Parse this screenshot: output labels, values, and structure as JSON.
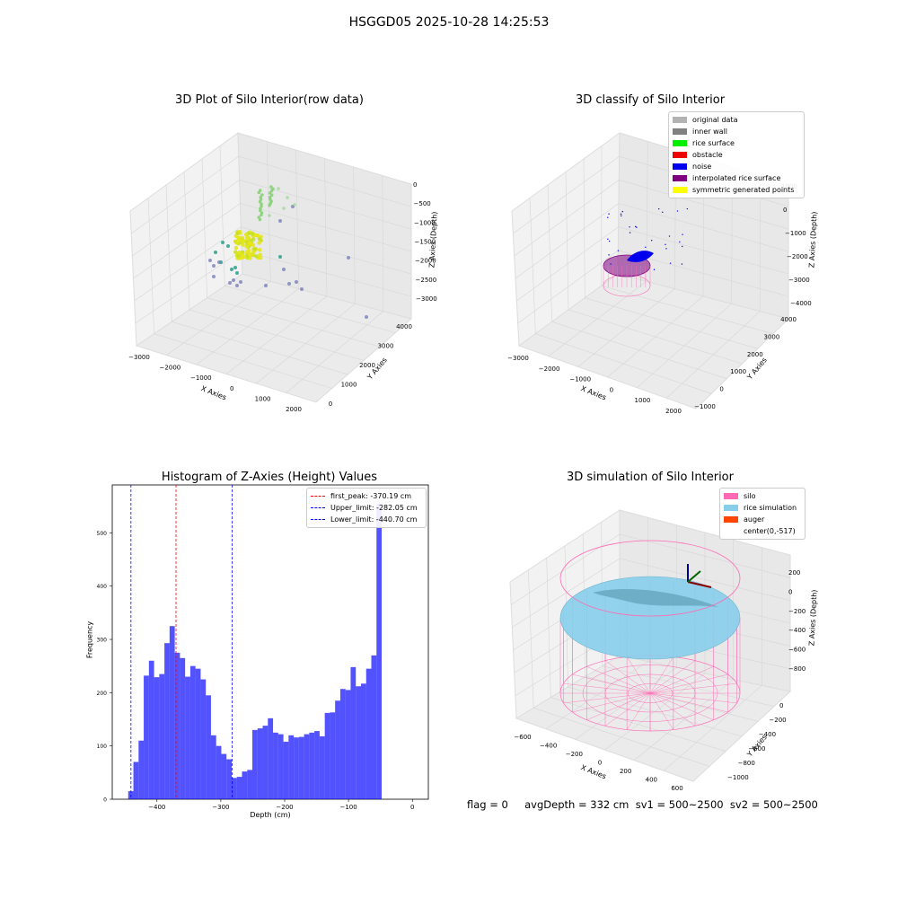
{
  "suptitle": "HSGGD05 2025-10-28 14:25:53",
  "panel1": {
    "title": "3D Plot of Silo Interior(row data)",
    "xlabel": "X Axies",
    "ylabel": "Y Axies",
    "zlabel": "Z Axies (Depth)",
    "xticks": [
      "−3000",
      "−2000",
      "−1000",
      "0",
      "1000",
      "2000"
    ],
    "yticks": [
      "0",
      "1000",
      "2000",
      "3000",
      "4000"
    ],
    "zticks": [
      "0",
      "−500",
      "−1000",
      "−1500",
      "−2000",
      "−2500",
      "−3000"
    ]
  },
  "panel2": {
    "title": "3D classify of Silo Interior",
    "xlabel": "X Axies",
    "ylabel": "Y Axies",
    "zlabel": "Z Axies (Depth)",
    "xticks": [
      "−3000",
      "−2000",
      "−1000",
      "0",
      "1000",
      "2000"
    ],
    "yticks": [
      "−1000",
      "0",
      "1000",
      "2000",
      "3000",
      "4000"
    ],
    "zticks": [
      "1000",
      "0",
      "−1000",
      "−2000",
      "−3000",
      "−4000"
    ],
    "legend": [
      {
        "label": "original data",
        "color": "#b3b3b3"
      },
      {
        "label": "inner wall",
        "color": "#808080"
      },
      {
        "label": "rice surface",
        "color": "#00ee00"
      },
      {
        "label": "obstacle",
        "color": "#ee0000"
      },
      {
        "label": "noise",
        "color": "#0000ee"
      },
      {
        "label": "interpolated rice surface",
        "color": "#800080"
      },
      {
        "label": "symmetric generated points",
        "color": "#ffff00"
      }
    ]
  },
  "panel3": {
    "title": "Histogram of Z-Axies (Height) Values",
    "legend": [
      {
        "label": "first_peak: -370.19 cm",
        "color": "#ff0000"
      },
      {
        "label": "Upper_limit: -282.05 cm",
        "color": "#0000ff"
      },
      {
        "label": "Lower_limit: -440.70 cm",
        "color": "#0000ff"
      }
    ]
  },
  "panel4": {
    "title": "3D simulation of Silo Interior",
    "xlabel": "X Axies",
    "ylabel": "Y Axies",
    "zlabel": "Z Axies (Depth)",
    "xticks": [
      "−600",
      "−400",
      "−200",
      "0",
      "200",
      "400",
      "600"
    ],
    "yticks": [
      "0",
      "−200",
      "−400",
      "−600",
      "−800",
      "−1000"
    ],
    "zticks": [
      "200",
      "0",
      "−200",
      "−400",
      "−600",
      "−800"
    ],
    "legend": [
      {
        "label": "silo",
        "color": "#ff69b4"
      },
      {
        "label": "rice simulation",
        "color": "#87ceeb"
      },
      {
        "label": "auger",
        "color": "#ff4500"
      },
      {
        "label": "center(0,-517)",
        "color": ""
      }
    ]
  },
  "footer": "flag = 0     avgDepth = 332 cm  sv1 = 500~2500  sv2 = 500~2500",
  "chart_data": [
    {
      "type": "scatter",
      "title": "3D Plot of Silo Interior(row data)",
      "xlabel": "X Axies",
      "ylabel": "Y Axies",
      "zlabel": "Z Axies (Depth)",
      "xlim": [
        -3000,
        2000
      ],
      "ylim": [
        0,
        4000
      ],
      "zlim": [
        -3000,
        0
      ],
      "grid": true
    },
    {
      "type": "scatter",
      "title": "3D classify of Silo Interior",
      "xlabel": "X Axies",
      "ylabel": "Y Axies",
      "zlabel": "Z Axies (Depth)",
      "xlim": [
        -3000,
        2000
      ],
      "ylim": [
        -1000,
        4000
      ],
      "zlim": [
        -4000,
        1000
      ],
      "grid": true,
      "legend_position": "top-right"
    },
    {
      "type": "bar",
      "title": "Histogram of Z-Axies (Height) Values",
      "xlabel": "Depth (cm)",
      "ylabel": "Frequency",
      "xlim": [
        -470,
        25
      ],
      "ylim": [
        0,
        590
      ],
      "xticks": [
        -400,
        -300,
        -200,
        -100,
        0
      ],
      "yticks": [
        0,
        100,
        200,
        300,
        400,
        500
      ],
      "bin_start": -445,
      "bin_width": 8.1,
      "values": [
        15,
        70,
        110,
        232,
        260,
        229,
        235,
        293,
        325,
        275,
        265,
        230,
        250,
        245,
        225,
        195,
        120,
        100,
        85,
        75,
        40,
        42,
        52,
        55,
        130,
        133,
        138,
        152,
        125,
        122,
        108,
        120,
        116,
        117,
        122,
        125,
        128,
        118,
        162,
        163,
        185,
        207,
        205,
        248,
        212,
        217,
        245,
        270,
        555
      ],
      "color": "#0000ff",
      "vlines": [
        {
          "x": -370.19,
          "label": "first_peak: -370.19 cm",
          "color": "#ff0000"
        },
        {
          "x": -282.05,
          "label": "Upper_limit: -282.05 cm",
          "color": "#0000ff"
        },
        {
          "x": -440.7,
          "label": "Lower_limit: -440.70 cm",
          "color": "#0000ff"
        }
      ],
      "legend_position": "top-right"
    },
    {
      "type": "surface",
      "title": "3D simulation of Silo Interior",
      "xlabel": "X Axies",
      "ylabel": "Y Axies",
      "zlabel": "Z Axies (Depth)",
      "xlim": [
        -600,
        600
      ],
      "ylim": [
        -1000,
        0
      ],
      "zlim": [
        -800,
        200
      ],
      "grid": true,
      "legend_position": "top-right"
    }
  ]
}
